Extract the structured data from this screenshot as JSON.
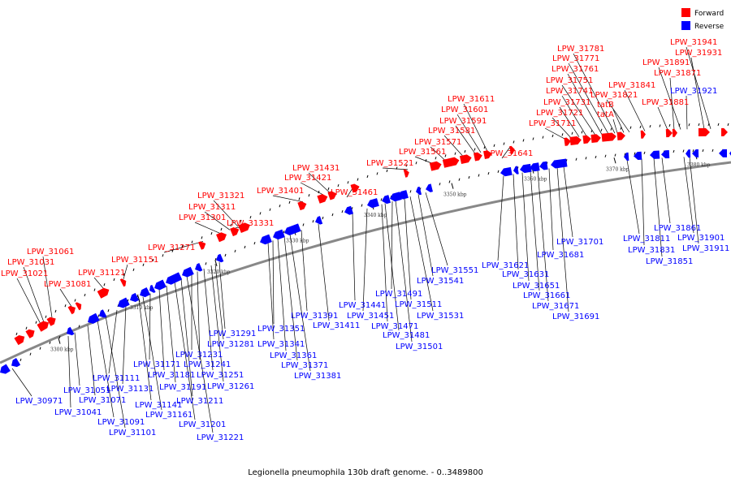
{
  "caption": "Legionella pneumophila 130b draft genome. - 0..3489800",
  "legend": [
    {
      "label": "Forward",
      "color": "#ff0000"
    },
    {
      "label": "Reverse",
      "color": "#0000ff"
    }
  ],
  "colors": {
    "forward": "#ff0000",
    "reverse": "#0000ff",
    "backbone": "#888888",
    "leader": "#000000"
  },
  "ticks": [
    "3300 kbp",
    "3310 kbp",
    "3320 kbp",
    "3330 kbp",
    "3340 kbp",
    "3350 kbp",
    "3360 kbp",
    "3370 kbp",
    "3380 kbp"
  ],
  "forward_labels": [
    "LPW_31021",
    "LPW_31031",
    "LPW_31061",
    "LPW_31081",
    "LPW_31121",
    "LPW_31151",
    "LPW_31271",
    "LPW_31301",
    "LPW_31311",
    "LPW_31321",
    "LPW_31331",
    "LPW_31401",
    "LPW_31421",
    "LPW_31431",
    "LPW_31461",
    "LPW_31521",
    "LPW_31561",
    "LPW_31571",
    "LPW_31581",
    "LPW_31591",
    "LPW_31601",
    "LPW_31611",
    "LPW_31641",
    "LPW_31711",
    "LPW_31721",
    "LPW_31731",
    "LPW_31741",
    "LPW_31751",
    "LPW_31761",
    "LPW_31771",
    "LPW_31781",
    "tatA",
    "tatB",
    "LPW_31821",
    "LPW_31841",
    "LPW_31881",
    "LPW_31871",
    "LPW_31891",
    "LPW_31931",
    "LPW_31941"
  ],
  "reverse_labels": [
    "LPW_30971",
    "LPW_31041",
    "LPW_31051",
    "LPW_31071",
    "LPW_31091",
    "LPW_31101",
    "LPW_31111",
    "LPW_31131",
    "LPW_31141",
    "LPW_31161",
    "LPW_31171",
    "LPW_31181",
    "LPW_31191",
    "LPW_31201",
    "LPW_31211",
    "LPW_31221",
    "LPW_31231",
    "LPW_31241",
    "LPW_31251",
    "LPW_31261",
    "LPW_31281",
    "LPW_31291",
    "LPW_31341",
    "LPW_31351",
    "LPW_31361",
    "LPW_31371",
    "LPW_31381",
    "LPW_31391",
    "LPW_31411",
    "LPW_31441",
    "LPW_31451",
    "LPW_31471",
    "LPW_31481",
    "LPW_31491",
    "LPW_31501",
    "LPW_31511",
    "LPW_31531",
    "LPW_31541",
    "LPW_31551",
    "LPW_31621",
    "LPW_31631",
    "LPW_31651",
    "LPW_31661",
    "LPW_31671",
    "LPW_31681",
    "LPW_31691",
    "LPW_31701",
    "LPW_31811",
    "LPW_31831",
    "LPW_31851",
    "LPW_31861",
    "LPW_31901",
    "LPW_31911",
    "LPW_31921"
  ]
}
